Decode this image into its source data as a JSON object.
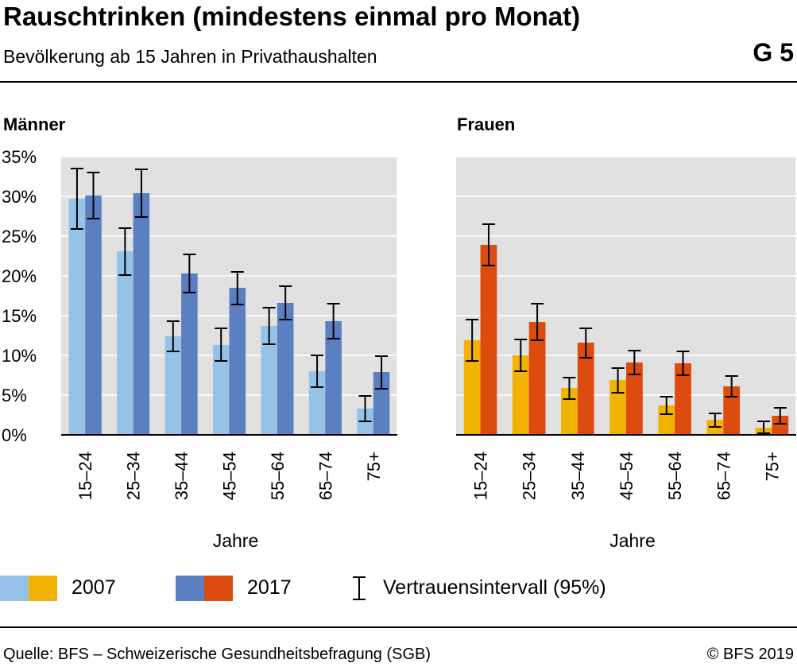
{
  "header": {
    "title": "Rauschtrinken (mindestens einmal pro Monat)",
    "subtitle": "Bevölkerung ab 15 Jahren in Privathaushalten",
    "code": "G 5"
  },
  "colors": {
    "men_2007": "#95c2e6",
    "men_2017": "#5b7fc0",
    "women_2007": "#f2b200",
    "women_2017": "#dd4b0f",
    "plot_bg": "#e1e1e1",
    "grid": "#ffffff"
  },
  "chart_data": [
    {
      "type": "bar",
      "title": "Männer",
      "xlabel": "Jahre",
      "ylabel": "",
      "ylim": [
        0,
        35
      ],
      "yticks": [
        "0%",
        "5%",
        "10%",
        "15%",
        "20%",
        "25%",
        "30%",
        "35%"
      ],
      "categories": [
        "15–24",
        "25–34",
        "35–44",
        "45–54",
        "55–64",
        "65–74",
        "75+"
      ],
      "series": [
        {
          "name": "2007",
          "values": [
            29.7,
            23.1,
            12.4,
            11.3,
            13.7,
            8.0,
            3.3
          ],
          "ci_low": [
            25.9,
            20.1,
            10.5,
            9.3,
            11.4,
            6.0,
            1.7
          ],
          "ci_high": [
            33.5,
            26.0,
            14.3,
            13.4,
            16.0,
            10.0,
            4.9
          ]
        },
        {
          "name": "2017",
          "values": [
            30.1,
            30.4,
            20.3,
            18.5,
            16.6,
            14.3,
            7.9
          ],
          "ci_low": [
            27.2,
            27.4,
            17.9,
            16.4,
            14.5,
            12.1,
            5.8
          ],
          "ci_high": [
            33.0,
            33.4,
            22.7,
            20.5,
            18.7,
            16.5,
            9.9
          ]
        }
      ]
    },
    {
      "type": "bar",
      "title": "Frauen",
      "xlabel": "Jahre",
      "ylabel": "",
      "ylim": [
        0,
        35
      ],
      "yticks": [
        "0%",
        "5%",
        "10%",
        "15%",
        "20%",
        "25%",
        "30%",
        "35%"
      ],
      "categories": [
        "15–24",
        "25–34",
        "35–44",
        "45–54",
        "55–64",
        "65–74",
        "75+"
      ],
      "series": [
        {
          "name": "2007",
          "values": [
            11.9,
            10.0,
            5.9,
            6.9,
            3.7,
            1.9,
            0.9
          ],
          "ci_low": [
            9.3,
            8.0,
            4.5,
            5.3,
            2.6,
            1.0,
            0.2
          ],
          "ci_high": [
            14.5,
            12.0,
            7.2,
            8.4,
            4.8,
            2.7,
            1.7
          ]
        },
        {
          "name": "2017",
          "values": [
            23.9,
            14.2,
            11.6,
            9.1,
            9.0,
            6.1,
            2.4
          ],
          "ci_low": [
            21.3,
            11.9,
            9.7,
            7.6,
            7.5,
            4.8,
            1.4
          ],
          "ci_high": [
            26.5,
            16.5,
            13.4,
            10.6,
            10.5,
            7.4,
            3.4
          ]
        }
      ]
    }
  ],
  "legend": {
    "label_2007": "2007",
    "label_2017": "2017",
    "ci_label": "Vertrauensintervall (95%)"
  },
  "footer": {
    "source": "Quelle: BFS – Schweizerische Gesundheitsbefragung (SGB)",
    "copyright": "© BFS 2019"
  }
}
